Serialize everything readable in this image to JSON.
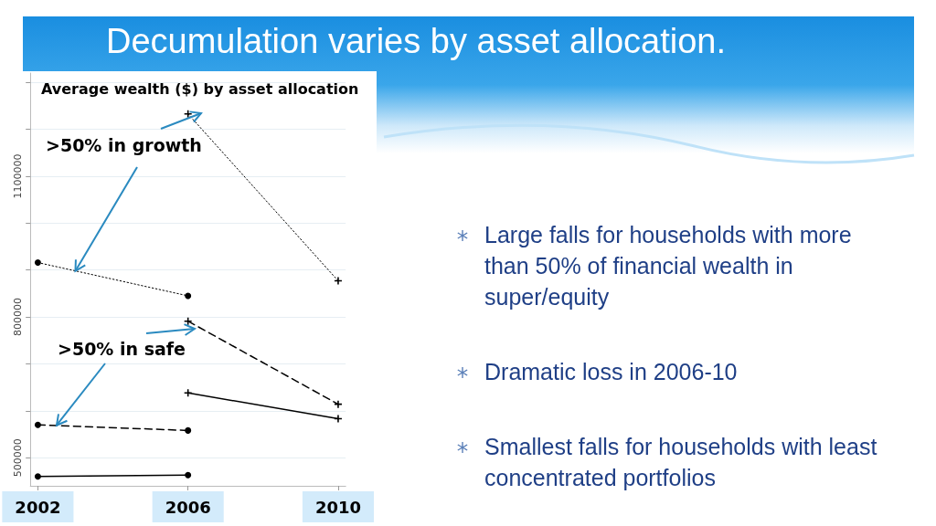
{
  "chart_data": {
    "type": "line",
    "title": "Decumulation varies by asset allocation.",
    "subtitle": "Average wealth ($) by asset allocation",
    "annotations": [
      {
        "text": ">50% in growth",
        "x": 2003,
        "y": 898000
      },
      {
        "text": ">50% in safe",
        "x": 2002.5,
        "y": 569000
      },
      "Large falls for households with more than 50% of financial wealth in super/equity",
      "Dramatic loss in 2006-10",
      "Smallest falls for households with least concentrated portfolios"
    ],
    "series": [
      {
        "color": "#000000",
        "marker": "circle",
        "line_style": "dotted",
        "x": [
          2002,
          2006
        ],
        "values": [
          916000,
          845000
        ]
      },
      {
        "color": "#000000",
        "marker": "cross",
        "line_style": "dotted",
        "x": [
          2006,
          2010
        ],
        "values": [
          1233000,
          877000
        ]
      },
      {
        "color": "#000000",
        "marker": "circle",
        "line_style": "dashed",
        "x": [
          2002,
          2006
        ],
        "values": [
          570000,
          558000
        ]
      },
      {
        "color": "#000000",
        "marker": "cross",
        "line_style": "dashed",
        "x": [
          2006,
          2010
        ],
        "values": [
          791000,
          614000
        ]
      },
      {
        "color": "#000000",
        "marker": "circle",
        "line_style": "solid",
        "x": [
          2002,
          2006
        ],
        "values": [
          460000,
          463000
        ]
      },
      {
        "color": "#000000",
        "marker": "cross",
        "line_style": "solid",
        "x": [
          2006,
          2010
        ],
        "values": [
          638000,
          583000
        ]
      }
    ],
    "xlim": [
      2001.8,
      2010.2
    ],
    "xticks": [
      2002,
      2006,
      2010
    ],
    "ylim": [
      440000,
      1320000
    ],
    "yticks": [
      500000,
      {
        "value": 600000,
        "label": null
      },
      {
        "value": 700000,
        "label": null
      },
      800000,
      {
        "value": 900000,
        "label": null
      },
      {
        "value": 1000000,
        "label": null
      },
      1100000,
      {
        "value": 1200000,
        "label": null
      },
      {
        "value": 1300000,
        "label": null
      }
    ],
    "grid": "y"
  }
}
